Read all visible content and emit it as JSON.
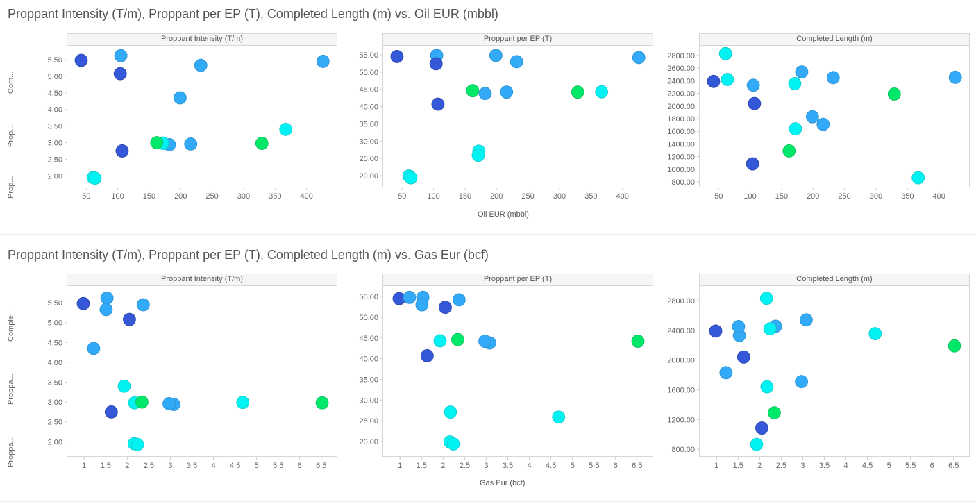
{
  "colors": {
    "dark_blue": "#3558d8",
    "light_blue": "#33aaf7",
    "cyan": "#00f2f2",
    "green": "#00e86a"
  },
  "chart_data": [
    {
      "type": "scatter",
      "title": "Proppant Intensity (T/m), Proppant per EP (T), Completed Length (m) vs. Oil EUR (mbbl)",
      "xlabel": "Oil EUR (mbbl)",
      "xlim": [
        20,
        450
      ],
      "xticks": [
        "50",
        "100",
        "150",
        "200",
        "250",
        "300",
        "350",
        "400"
      ],
      "xtick_values": [
        50,
        100,
        150,
        200,
        250,
        300,
        350,
        400
      ],
      "side_labels": [
        "Com...",
        "Prop...",
        "Prop..."
      ],
      "xkey": "oil",
      "panels": [
        {
          "title": "Proppant Intensity (T/m)",
          "ykey": "pi",
          "ylim": [
            1.65,
            5.94
          ],
          "yticks": [
            "2.00",
            "2.50",
            "3.00",
            "3.50",
            "4.00",
            "4.50",
            "5.00",
            "5.50"
          ],
          "ytick_values": [
            2,
            2.5,
            3,
            3.5,
            4,
            4.5,
            5,
            5.5
          ]
        },
        {
          "title": "Proppant per EP (T)",
          "ykey": "ppep",
          "ylim": [
            16.6,
            57.8
          ],
          "yticks": [
            "20.00",
            "25.00",
            "30.00",
            "35.00",
            "40.00",
            "45.00",
            "50.00",
            "55.00"
          ],
          "ytick_values": [
            20,
            25,
            30,
            35,
            40,
            45,
            50,
            55
          ]
        },
        {
          "title": "Completed Length (m)",
          "ykey": "cl",
          "ylim": [
            712,
            2964
          ],
          "yticks": [
            "800.00",
            "1000.00",
            "1200.00",
            "1400.00",
            "1600.00",
            "1800.00",
            "2000.00",
            "2200.00",
            "2400.00",
            "2600.00",
            "2800.00"
          ],
          "ytick_values": [
            800,
            1000,
            1200,
            1400,
            1600,
            1800,
            2000,
            2200,
            2400,
            2600,
            2800
          ]
        }
      ]
    },
    {
      "type": "scatter",
      "title": "Proppant Intensity (T/m), Proppant per EP (T), Completed Length (m) vs. Gas Eur (bcf)",
      "xlabel": "Gas Eur (bcf)",
      "xlim": [
        0.61,
        6.89
      ],
      "xticks": [
        "1",
        "1.5",
        "2",
        "2.5",
        "3",
        "3.5",
        "4",
        "4.5",
        "5",
        "5.5",
        "6",
        "6.5"
      ],
      "xtick_values": [
        1,
        1.5,
        2,
        2.5,
        3,
        3.5,
        4,
        4.5,
        5,
        5.5,
        6,
        6.5
      ],
      "side_labels": [
        "Comple...",
        "Proppa...",
        "Proppa..."
      ],
      "xkey": "gas",
      "panels": [
        {
          "title": "Proppant Intensity (T/m)",
          "ykey": "pi",
          "ylim": [
            1.62,
            5.94
          ],
          "yticks": [
            "2.00",
            "2.50",
            "3.00",
            "3.50",
            "4.00",
            "4.50",
            "5.00",
            "5.50"
          ],
          "ytick_values": [
            2,
            2.5,
            3,
            3.5,
            4,
            4.5,
            5,
            5.5
          ]
        },
        {
          "title": "Proppant per EP (T)",
          "ykey": "ppep",
          "ylim": [
            16.3,
            57.7
          ],
          "yticks": [
            "20.00",
            "25.00",
            "30.00",
            "35.00",
            "40.00",
            "45.00",
            "50.00",
            "55.00"
          ],
          "ytick_values": [
            20,
            25,
            30,
            35,
            40,
            45,
            50,
            55
          ]
        },
        {
          "title": "Completed Length (m)",
          "ykey": "cl",
          "ylim": [
            698,
            3005
          ],
          "yticks": [
            "800.00",
            "1200.00",
            "1600.00",
            "2000.00",
            "2400.00",
            "2800.00"
          ],
          "ytick_values": [
            800,
            1200,
            1600,
            2000,
            2400,
            2800
          ]
        }
      ]
    }
  ],
  "wells": [
    {
      "oil": 42,
      "gas": 0.98,
      "pi": 5.48,
      "ppep": 54.5,
      "cl": 2390,
      "color": "dark_blue"
    },
    {
      "oil": 105,
      "gas": 1.53,
      "pi": 5.62,
      "ppep": 54.8,
      "cl": 2330,
      "color": "light_blue"
    },
    {
      "oil": 104,
      "gas": 2.05,
      "pi": 5.08,
      "ppep": 52.4,
      "cl": 1085,
      "color": "dark_blue"
    },
    {
      "oil": 107,
      "gas": 1.63,
      "pi": 2.75,
      "ppep": 40.7,
      "cl": 2040,
      "color": "dark_blue"
    },
    {
      "oil": 232,
      "gas": 1.51,
      "pi": 5.33,
      "ppep": 53.0,
      "cl": 2450,
      "color": "light_blue"
    },
    {
      "oil": 426,
      "gas": 2.37,
      "pi": 5.45,
      "ppep": 54.2,
      "cl": 2455,
      "color": "light_blue"
    },
    {
      "oil": 199,
      "gas": 1.22,
      "pi": 4.35,
      "ppep": 54.8,
      "cl": 1830,
      "color": "light_blue"
    },
    {
      "oil": 182,
      "gas": 3.08,
      "pi": 2.94,
      "ppep": 43.8,
      "cl": 2540,
      "color": "light_blue"
    },
    {
      "oil": 216,
      "gas": 2.97,
      "pi": 2.96,
      "ppep": 44.2,
      "cl": 1710,
      "color": "light_blue"
    },
    {
      "oil": 172,
      "gas": 2.17,
      "pi": 2.98,
      "ppep": 27.1,
      "cl": 1640,
      "color": "cyan"
    },
    {
      "oil": 171,
      "gas": 4.68,
      "pi": 2.99,
      "ppep": 25.9,
      "cl": 2355,
      "color": "cyan"
    },
    {
      "oil": 61,
      "gas": 2.16,
      "pi": 1.95,
      "ppep": 19.9,
      "cl": 2830,
      "color": "cyan"
    },
    {
      "oil": 64,
      "gas": 2.24,
      "pi": 1.93,
      "ppep": 19.4,
      "cl": 2420,
      "color": "cyan"
    },
    {
      "oil": 367,
      "gas": 1.93,
      "pi": 3.4,
      "ppep": 44.3,
      "cl": 865,
      "color": "cyan"
    },
    {
      "oil": 162,
      "gas": 2.34,
      "pi": 3.0,
      "ppep": 44.6,
      "cl": 1290,
      "color": "green"
    },
    {
      "oil": 329,
      "gas": 6.52,
      "pi": 2.98,
      "ppep": 44.2,
      "cl": 2190,
      "color": "green"
    }
  ]
}
